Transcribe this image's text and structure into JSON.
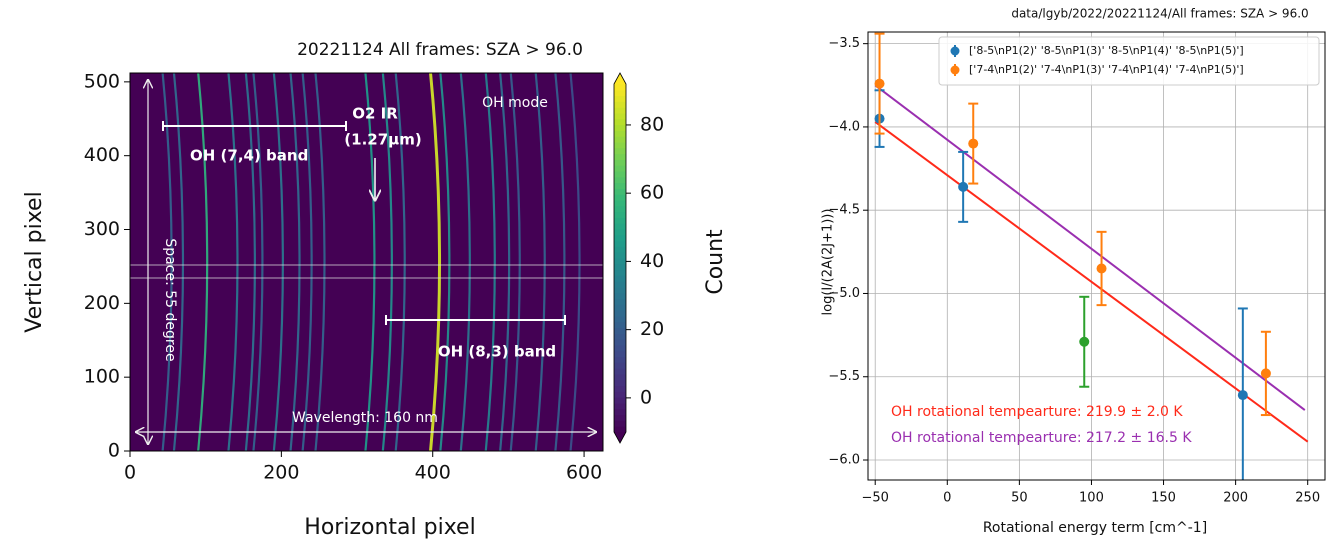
{
  "chart_data": [
    {
      "type": "image",
      "title": "20221124 All frames: SZA > 96.0",
      "x_label": "Horizontal pixel",
      "y_label": "Vertical pixel",
      "xlim": [
        0,
        625
      ],
      "ylim": [
        0,
        512
      ],
      "xticks": [
        0,
        200,
        400,
        600
      ],
      "yticks": [
        0,
        100,
        200,
        300,
        400,
        500
      ],
      "colormap": "viridis",
      "background_color": "#440154",
      "colorbar_label": "Count",
      "colorbar_lim": [
        -10,
        92
      ],
      "colorbar_ticks": [
        0,
        20,
        40,
        60,
        80
      ],
      "line_x": [
        55,
        70,
        102,
        142,
        165,
        175,
        202,
        224,
        240,
        257,
        323,
        346,
        363,
        409,
        422,
        449,
        482,
        501,
        515,
        548,
        574,
        594
      ],
      "line_counts": [
        22,
        25,
        55,
        30,
        28,
        22,
        30,
        25,
        22,
        22,
        45,
        40,
        25,
        85,
        40,
        30,
        35,
        25,
        20,
        22,
        20,
        15
      ],
      "annotations": [
        "OH (7,4) band",
        "O2 IR",
        "(1.27μm)",
        "OH mode",
        "OH (8,3) band",
        "Space: 55 degree",
        "Wavelength: 160 nm"
      ]
    },
    {
      "type": "errorbar",
      "title": "data/lgyb/2022/20221124/All frames: SZA > 96.0",
      "x_label": "Rotational energy term [cm^-1]",
      "y_label": "log(I/(2A(2J+1)))",
      "xlim": [
        -55,
        262
      ],
      "ylim": [
        -6.12,
        -3.43
      ],
      "xticks": [
        {
          "value": -50,
          "label": "−50"
        },
        0,
        50,
        100,
        150,
        200,
        250
      ],
      "yticks": [
        {
          "value": -3.5,
          "label": "−3.5"
        },
        {
          "value": -4,
          "label": "−4.0"
        },
        {
          "value": -4.5,
          "label": "−4.5"
        },
        {
          "value": -5,
          "label": "−5.0"
        },
        {
          "value": -5.5,
          "label": "−5.5"
        },
        {
          "value": -6,
          "label": "−6.0"
        }
      ],
      "grid": true,
      "legend": "upper right",
      "series": [
        {
          "name": "['8-5\\nP1(2)' '8-5\\nP1(3)' '8-5\\nP1(4)' '8-5\\nP1(5)']",
          "color": "#1f77b4",
          "x": [
            -47,
            11,
            205
          ],
          "values": [
            -3.95,
            -4.36,
            -5.61
          ],
          "errors": [
            0.17,
            0.21,
            0.52
          ]
        },
        {
          "name": "['7-4\\nP1(2)' '7-4\\nP1(3)' '7-4\\nP1(4)' '7-4\\nP1(5)']",
          "color": "#ff7f0e",
          "x": [
            -47,
            18,
            107,
            221
          ],
          "values": [
            -3.74,
            -4.1,
            -4.85,
            -5.48
          ],
          "errors": [
            0.3,
            0.24,
            0.22,
            0.25
          ]
        },
        {
          "color": "#2ca02c",
          "x": [
            95
          ],
          "values": [
            -5.29
          ],
          "errors": [
            0.27
          ]
        }
      ],
      "fits": [
        {
          "color": "#ff2a1a",
          "x": [
            -50,
            250
          ],
          "values": [
            -3.97,
            -5.89
          ]
        },
        {
          "color": "#9a2fb0",
          "x": [
            -50,
            248
          ],
          "values": [
            -3.75,
            -5.7
          ]
        }
      ],
      "annotations": [
        {
          "text": "OH rotational tempearture: 219.9 ± 2.0 K",
          "color": "#ff2a1a"
        },
        {
          "text": "OH rotational tempearture: 217.2 ± 16.5 K",
          "color": "#9a2fb0"
        }
      ]
    }
  ]
}
